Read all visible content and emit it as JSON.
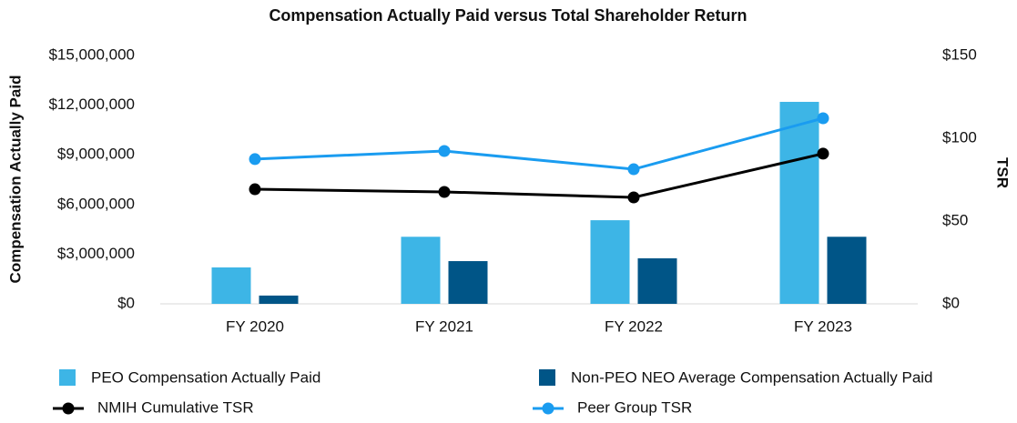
{
  "chart_data": {
    "type": "bar",
    "title": "Compensation Actually Paid versus Total Shareholder Return",
    "ylabel": "Compensation Actually Paid",
    "y2label": "TSR",
    "categories": [
      "FY 2020",
      "FY 2021",
      "FY 2022",
      "FY 2023"
    ],
    "series": [
      {
        "name": "PEO Compensation Actually Paid",
        "type": "bar",
        "color": "#3db5e6",
        "values": [
          2200000,
          4050000,
          5050000,
          12200000
        ]
      },
      {
        "name": "Non-PEO NEO Average Compensation Actually Paid",
        "type": "bar",
        "color": "#005587",
        "values": [
          500000,
          2580000,
          2750000,
          4050000
        ]
      },
      {
        "name": "NMIH Cumulative TSR",
        "type": "line",
        "axis": "y2",
        "color": "#000000",
        "values": [
          69.2,
          67.6,
          64.3,
          90.7
        ]
      },
      {
        "name": "Peer Group TSR",
        "type": "line",
        "axis": "y2",
        "color": "#1a9cf0",
        "values": [
          87.4,
          92.3,
          81.3,
          112.1
        ]
      }
    ],
    "ylim": [
      0,
      15000000
    ],
    "yticks": [
      {
        "value": 0,
        "label": "$0"
      },
      {
        "value": 3000000,
        "label": "$3,000,000"
      },
      {
        "value": 6000000,
        "label": "$6,000,000"
      },
      {
        "value": 9000000,
        "label": "$9,000,000"
      },
      {
        "value": 12000000,
        "label": "$12,000,000"
      },
      {
        "value": 15000000,
        "label": "$15,000,000"
      }
    ],
    "y2lim": [
      0,
      150
    ],
    "y2ticks": [
      {
        "value": 0,
        "label": "$0"
      },
      {
        "value": 50,
        "label": "$50"
      },
      {
        "value": 100,
        "label": "$100"
      },
      {
        "value": 150,
        "label": "$150"
      }
    ],
    "legend": "bottom"
  }
}
